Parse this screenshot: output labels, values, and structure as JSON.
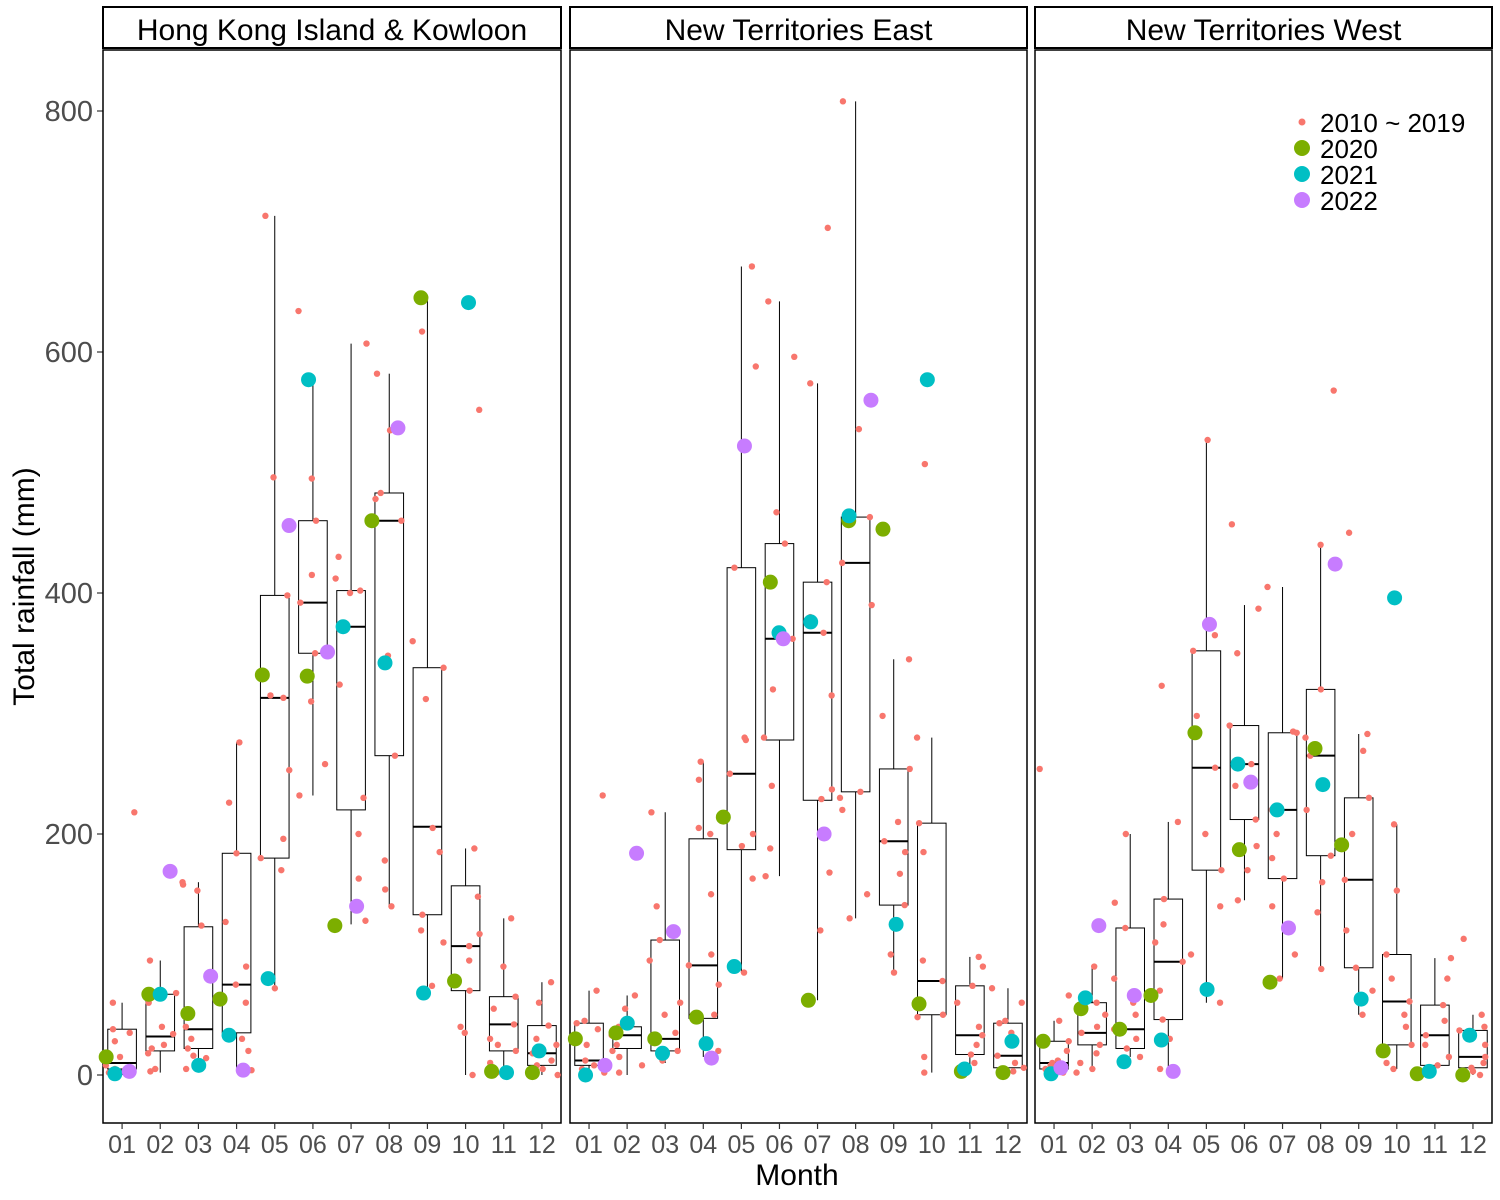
{
  "chart_data": {
    "type": "box",
    "xlabel": "Month",
    "ylabel": "Total rainfall (mm)",
    "ylim": [
      -40,
      850
    ],
    "y_ticks": [
      0,
      200,
      400,
      600,
      800
    ],
    "categories": [
      "01",
      "02",
      "03",
      "04",
      "05",
      "06",
      "07",
      "08",
      "09",
      "10",
      "11",
      "12"
    ],
    "grid": false,
    "legend_position": "top-right",
    "legend": [
      {
        "label": "2010 ~ 2019",
        "color": "#F8766D",
        "size": "small"
      },
      {
        "label": "2020",
        "color": "#7CAE00",
        "size": "large"
      },
      {
        "label": "2021",
        "color": "#00BFC4",
        "size": "large"
      },
      {
        "label": "2022",
        "color": "#C77CFF",
        "size": "large"
      }
    ],
    "panels": [
      {
        "name": "Hong Kong Island & Kowloon",
        "boxes": [
          {
            "q1": 5,
            "median": 10,
            "q3": 38,
            "lo": 0,
            "hi": 60
          },
          {
            "q1": 20,
            "median": 32,
            "q3": 67,
            "lo": 2,
            "hi": 95
          },
          {
            "q1": 22,
            "median": 38,
            "q3": 123,
            "lo": 5,
            "hi": 160
          },
          {
            "q1": 35,
            "median": 75,
            "q3": 184,
            "lo": 4,
            "hi": 276
          },
          {
            "q1": 180,
            "median": 313,
            "q3": 398,
            "lo": 70,
            "hi": 713
          },
          {
            "q1": 350,
            "median": 392,
            "q3": 460,
            "lo": 232,
            "hi": 575
          },
          {
            "q1": 220,
            "median": 372,
            "q3": 402,
            "lo": 125,
            "hi": 607
          },
          {
            "q1": 265,
            "median": 460,
            "q3": 483,
            "lo": 140,
            "hi": 582
          },
          {
            "q1": 133,
            "median": 206,
            "q3": 338,
            "lo": 70,
            "hi": 645
          },
          {
            "q1": 70,
            "median": 107,
            "q3": 157,
            "lo": 0,
            "hi": 188
          },
          {
            "q1": 20,
            "median": 42,
            "q3": 65,
            "lo": 2,
            "hi": 130
          },
          {
            "q1": 8,
            "median": 18,
            "q3": 41,
            "lo": 0,
            "hi": 77
          }
        ],
        "y2010_2019": [
          [
            8,
            38,
            2,
            0,
            15,
            60,
            28,
            5,
            218,
            35
          ],
          [
            95,
            68,
            34,
            22,
            5,
            40,
            3,
            25,
            60,
            18
          ],
          [
            158,
            153,
            124,
            40,
            14,
            22,
            5,
            30,
            16,
            160
          ],
          [
            226,
            184,
            127,
            75,
            30,
            4,
            276,
            60,
            90,
            20
          ],
          [
            713,
            496,
            398,
            315,
            313,
            253,
            196,
            180,
            170,
            72
          ],
          [
            634,
            495,
            460,
            415,
            392,
            350,
            258,
            232,
            575,
            310
          ],
          [
            607,
            430,
            412,
            402,
            400,
            324,
            230,
            200,
            163,
            128
          ],
          [
            582,
            535,
            483,
            478,
            460,
            348,
            265,
            178,
            154,
            140
          ],
          [
            617,
            360,
            338,
            312,
            205,
            185,
            133,
            120,
            110,
            74
          ],
          [
            552,
            188,
            148,
            117,
            107,
            95,
            70,
            40,
            35,
            0
          ],
          [
            130,
            90,
            65,
            55,
            42,
            30,
            25,
            20,
            10,
            2
          ],
          [
            77,
            60,
            41,
            30,
            25,
            18,
            12,
            8,
            5,
            0
          ]
        ],
        "y2020": [
          15,
          67,
          51,
          63,
          332,
          331,
          124,
          460,
          645,
          78,
          3,
          2
        ],
        "y2021": [
          1,
          67,
          8,
          33,
          80,
          577,
          372,
          342,
          68,
          641,
          2,
          20
        ],
        "y2022": [
          3,
          169,
          82,
          4,
          456,
          351,
          140,
          537,
          null,
          null,
          null,
          null
        ]
      },
      {
        "name": "New Territories East",
        "boxes": [
          {
            "q1": 8,
            "median": 12,
            "q3": 43,
            "lo": 0,
            "hi": 70
          },
          {
            "q1": 22,
            "median": 33,
            "q3": 40,
            "lo": 0,
            "hi": 66
          },
          {
            "q1": 20,
            "median": 30,
            "q3": 112,
            "lo": 10,
            "hi": 218
          },
          {
            "q1": 47,
            "median": 91,
            "q3": 196,
            "lo": 15,
            "hi": 260
          },
          {
            "q1": 187,
            "median": 250,
            "q3": 421,
            "lo": 85,
            "hi": 671
          },
          {
            "q1": 278,
            "median": 362,
            "q3": 441,
            "lo": 165,
            "hi": 642
          },
          {
            "q1": 228,
            "median": 367,
            "q3": 409,
            "lo": 62,
            "hi": 574
          },
          {
            "q1": 235,
            "median": 425,
            "q3": 463,
            "lo": 130,
            "hi": 808
          },
          {
            "q1": 141,
            "median": 194,
            "q3": 254,
            "lo": 85,
            "hi": 345
          },
          {
            "q1": 50,
            "median": 78,
            "q3": 209,
            "lo": 2,
            "hi": 280
          },
          {
            "q1": 17,
            "median": 33,
            "q3": 74,
            "lo": 2,
            "hi": 98
          },
          {
            "q1": 6,
            "median": 16,
            "q3": 43,
            "lo": 0,
            "hi": 72
          }
        ],
        "y2010_2019": [
          [
            232,
            70,
            43,
            38,
            12,
            8,
            5,
            2,
            25,
            45
          ],
          [
            66,
            55,
            42,
            40,
            33,
            25,
            20,
            8,
            2,
            15
          ],
          [
            218,
            140,
            112,
            95,
            60,
            35,
            30,
            20,
            12,
            50
          ],
          [
            260,
            245,
            205,
            200,
            150,
            100,
            91,
            75,
            50,
            20
          ],
          [
            671,
            588,
            421,
            280,
            278,
            250,
            200,
            190,
            163,
            85
          ],
          [
            642,
            596,
            467,
            441,
            362,
            320,
            280,
            240,
            188,
            165
          ],
          [
            703,
            574,
            409,
            380,
            367,
            315,
            237,
            229,
            168,
            120
          ],
          [
            808,
            536,
            463,
            425,
            390,
            235,
            230,
            220,
            150,
            130
          ],
          [
            345,
            298,
            254,
            210,
            194,
            185,
            167,
            141,
            100,
            85
          ],
          [
            507,
            280,
            209,
            185,
            95,
            78,
            50,
            48,
            15,
            2
          ],
          [
            98,
            90,
            74,
            60,
            40,
            33,
            25,
            17,
            10,
            2
          ],
          [
            72,
            60,
            43,
            35,
            25,
            16,
            10,
            6,
            3,
            45
          ]
        ],
        "y2020": [
          30,
          35,
          30,
          48,
          214,
          409,
          62,
          460,
          453,
          59,
          3,
          2
        ],
        "y2021": [
          0,
          43,
          18,
          26,
          90,
          367,
          376,
          464,
          125,
          577,
          5,
          28
        ],
        "y2022": [
          8,
          184,
          119,
          14,
          522,
          362,
          200,
          560,
          null,
          null,
          null,
          null
        ]
      },
      {
        "name": "New Territories West",
        "boxes": [
          {
            "q1": 5,
            "median": 10,
            "q3": 28,
            "lo": 0,
            "hi": 45
          },
          {
            "q1": 25,
            "median": 35,
            "q3": 60,
            "lo": 5,
            "hi": 90
          },
          {
            "q1": 22,
            "median": 38,
            "q3": 122,
            "lo": 15,
            "hi": 200
          },
          {
            "q1": 46,
            "median": 94,
            "q3": 146,
            "lo": 5,
            "hi": 210
          },
          {
            "q1": 170,
            "median": 255,
            "q3": 352,
            "lo": 60,
            "hi": 527
          },
          {
            "q1": 212,
            "median": 258,
            "q3": 290,
            "lo": 145,
            "hi": 390
          },
          {
            "q1": 163,
            "median": 220,
            "q3": 284,
            "lo": 80,
            "hi": 405
          },
          {
            "q1": 182,
            "median": 265,
            "q3": 320,
            "lo": 88,
            "hi": 440
          },
          {
            "q1": 89,
            "median": 162,
            "q3": 230,
            "lo": 50,
            "hi": 283
          },
          {
            "q1": 25,
            "median": 61,
            "q3": 100,
            "lo": 5,
            "hi": 208
          },
          {
            "q1": 8,
            "median": 33,
            "q3": 58,
            "lo": 2,
            "hi": 97
          },
          {
            "q1": 6,
            "median": 15,
            "q3": 37,
            "lo": 0,
            "hi": 50
          }
        ],
        "y2010_2019": [
          [
            254,
            66,
            45,
            28,
            12,
            10,
            5,
            2,
            20,
            8
          ],
          [
            90,
            60,
            50,
            40,
            35,
            25,
            18,
            10,
            5,
            2
          ],
          [
            200,
            143,
            122,
            80,
            50,
            38,
            30,
            22,
            15,
            60
          ],
          [
            323,
            210,
            146,
            125,
            110,
            94,
            70,
            46,
            30,
            5
          ],
          [
            527,
            365,
            352,
            298,
            255,
            200,
            170,
            140,
            100,
            60
          ],
          [
            457,
            387,
            290,
            258,
            240,
            212,
            190,
            170,
            145,
            350
          ],
          [
            405,
            285,
            284,
            220,
            200,
            180,
            163,
            140,
            100,
            80
          ],
          [
            568,
            440,
            320,
            280,
            265,
            220,
            182,
            160,
            135,
            88
          ],
          [
            450,
            283,
            269,
            230,
            200,
            162,
            120,
            89,
            70,
            50
          ],
          [
            208,
            153,
            100,
            80,
            61,
            50,
            40,
            25,
            10,
            5
          ],
          [
            97,
            80,
            58,
            45,
            33,
            25,
            15,
            8,
            5,
            2
          ],
          [
            113,
            50,
            37,
            25,
            15,
            10,
            6,
            3,
            0,
            40
          ]
        ],
        "y2020": [
          28,
          55,
          38,
          66,
          284,
          187,
          77,
          271,
          191,
          20,
          1,
          0
        ],
        "y2021": [
          1,
          64,
          11,
          29,
          71,
          258,
          220,
          241,
          63,
          396,
          3,
          33
        ],
        "y2022": [
          6,
          124,
          66,
          3,
          374,
          243,
          122,
          424,
          null,
          null,
          null,
          null
        ]
      }
    ]
  }
}
